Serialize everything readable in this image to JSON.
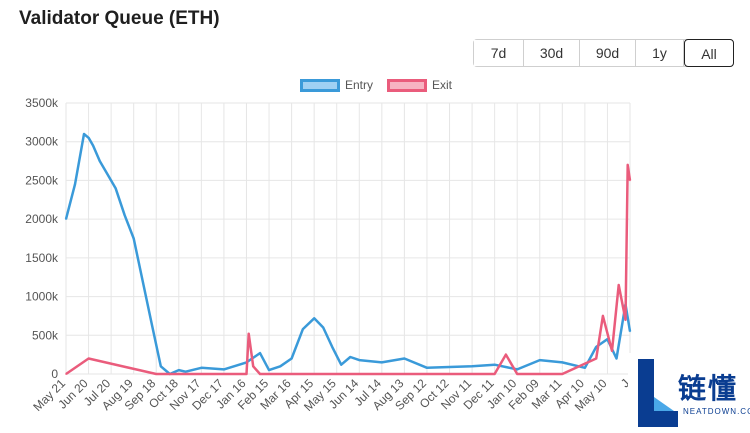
{
  "title": "Validator Queue (ETH)",
  "range_buttons": [
    {
      "label": "7d",
      "active": false
    },
    {
      "label": "30d",
      "active": false
    },
    {
      "label": "90d",
      "active": false
    },
    {
      "label": "1y",
      "active": false
    },
    {
      "label": "All",
      "active": true
    }
  ],
  "colors": {
    "entry": "#3a9ad9",
    "entry_fill": "#9fd0f3",
    "exit": "#ea5c7c",
    "exit_fill": "#f7b3c2",
    "grid": "#e6e6e6"
  },
  "watermark": {
    "text": "链懂",
    "subtext": "NEATDOWN.COM",
    "icon": "L-logo-icon"
  },
  "chart_data": {
    "type": "line",
    "title": "",
    "xlabel": "",
    "ylabel": "",
    "ylim": [
      0,
      3500000
    ],
    "yticks": [
      0,
      500000,
      1000000,
      1500000,
      2000000,
      2500000,
      3000000,
      3500000
    ],
    "ytick_labels": [
      "0",
      "500k",
      "1000k",
      "1500k",
      "2000k",
      "2500k",
      "3000k",
      "3500k"
    ],
    "xtick_labels": [
      "May 21",
      "Jun 20",
      "Jul 20",
      "Aug 19",
      "Sep 18",
      "Oct 18",
      "Nov 17",
      "Dec 17",
      "Jan 16",
      "Feb 15",
      "Mar 16",
      "Apr 15",
      "May 15",
      "Jun 14",
      "Jul 14",
      "Aug 13",
      "Sep 12",
      "Oct 12",
      "Nov 11",
      "Dec 11",
      "Jan 10",
      "Feb 09",
      "Mar 11",
      "Apr 10",
      "May 10",
      "J"
    ],
    "grid": true,
    "legend": "top-center",
    "series": [
      {
        "name": "Entry",
        "x": [
          0,
          0.4,
          0.8,
          1.0,
          1.2,
          1.5,
          1.8,
          2.2,
          2.6,
          3.0,
          3.4,
          3.8,
          4.2,
          4.6,
          5.0,
          5.3,
          6.0,
          7.0,
          8.0,
          8.6,
          9.0,
          9.5,
          10.0,
          10.5,
          11.0,
          11.4,
          11.8,
          12.2,
          12.6,
          13.0,
          14.0,
          15.0,
          16.0,
          17.0,
          18.0,
          19.0,
          20.0,
          21.0,
          22.0,
          23.0,
          23.5,
          24.0,
          24.4,
          24.8,
          25.0
        ],
        "values": [
          2000000,
          2450000,
          3100000,
          3050000,
          2950000,
          2750000,
          2600000,
          2400000,
          2050000,
          1750000,
          1200000,
          650000,
          100000,
          0,
          50000,
          30000,
          80000,
          60000,
          150000,
          270000,
          50000,
          100000,
          200000,
          580000,
          720000,
          600000,
          350000,
          120000,
          220000,
          180000,
          150000,
          200000,
          80000,
          90000,
          100000,
          120000,
          60000,
          180000,
          150000,
          80000,
          350000,
          450000,
          200000,
          900000,
          550000
        ]
      },
      {
        "name": "Exit",
        "x": [
          0,
          1.0,
          4.0,
          6.0,
          7.0,
          8.0,
          8.1,
          8.3,
          8.6,
          9.0,
          11.0,
          13.0,
          15.0,
          17.0,
          19.0,
          19.5,
          20.0,
          22.0,
          23.5,
          23.8,
          24.2,
          24.5,
          24.8,
          24.9,
          25.0
        ],
        "values": [
          0,
          200000,
          0,
          0,
          0,
          0,
          520000,
          100000,
          0,
          0,
          0,
          0,
          0,
          0,
          0,
          250000,
          0,
          0,
          200000,
          750000,
          300000,
          1150000,
          700000,
          2700000,
          2500000
        ]
      }
    ]
  }
}
